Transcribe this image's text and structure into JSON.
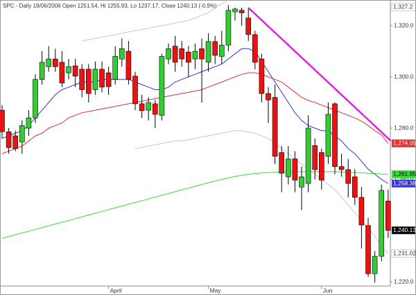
{
  "chart_data": {
    "type": "candlestick",
    "title": "SPC - Daily 19/06/2006 Open 1251.54, Hi 1255.93, Lo 1237.17, Close 1240.13 (-0.9%)",
    "categories": [
      null,
      null,
      null,
      null,
      null,
      null,
      null,
      null,
      null,
      null,
      null,
      null,
      null,
      null,
      null,
      null,
      "April",
      null,
      null,
      null,
      null,
      null,
      null,
      null,
      null,
      null,
      null,
      null,
      null,
      null,
      null,
      "May",
      null,
      null,
      null,
      null,
      null,
      null,
      null,
      null,
      null,
      null,
      null,
      null,
      null,
      null,
      null,
      null,
      "Jun",
      null,
      null,
      null,
      null,
      null,
      null,
      null,
      null,
      null,
      null
    ],
    "open": [
      1287,
      1278.6,
      1277,
      1274.6,
      1280,
      1284,
      1299,
      1304,
      1307,
      1305.7,
      1301.6,
      1304.3,
      1303,
      1303,
      1295,
      1303,
      1301.6,
      1299,
      1307,
      1310,
      1300.3,
      1289.5,
      1287,
      1289.5,
      1285,
      1307,
      1312,
      1311,
      1309.7,
      1307,
      1311,
      1305.7,
      1313.8,
      1308,
      1312.4,
      1325.4,
      1326,
      1323,
      1316.5,
      1307,
      1293.5,
      1292,
      1270.5,
      1261,
      1268,
      1257,
      1258.4,
      1273.2,
      1270.5,
      1269,
      1289.5,
      1265,
      1263.8,
      1261,
      1253,
      1242,
      1223.2,
      1230,
      1251.54
    ],
    "high": [
      1289,
      1280,
      1279,
      1283,
      1287,
      1301,
      1310,
      1312,
      1311,
      1310,
      1307,
      1307,
      1305,
      1305,
      1306,
      1306,
      1304,
      1312,
      1315,
      1314,
      1302,
      1293,
      1292,
      1291,
      1309,
      1313,
      1316,
      1314,
      1312,
      1313,
      1315,
      1317,
      1316,
      1318,
      1328,
      1327,
      1327,
      1327,
      1318,
      1309,
      1296,
      1297,
      1273,
      1273,
      1271,
      1265,
      1285,
      1276,
      1272,
      1290,
      1290,
      1270,
      1268,
      1264,
      1257,
      1245,
      1232,
      1258,
      1255.93
    ],
    "low": [
      1276,
      1270,
      1271,
      1270,
      1277,
      1282,
      1297,
      1302,
      1302,
      1296,
      1299,
      1296,
      1292,
      1290,
      1293,
      1294,
      1293,
      1297,
      1304,
      1297,
      1287,
      1284,
      1283,
      1280,
      1283,
      1305,
      1302,
      1304,
      1300,
      1303,
      1290,
      1302,
      1305,
      1305,
      1310,
      1322,
      1320,
      1314,
      1303,
      1290,
      1282,
      1266,
      1255,
      1258,
      1255,
      1248,
      1255,
      1260,
      1256,
      1266,
      1262,
      1261,
      1253,
      1250,
      1233,
      1222,
      1219.7,
      1228,
      1237.17
    ],
    "close": [
      1278.6,
      1272.4,
      1272,
      1281,
      1284,
      1299,
      1305.7,
      1307,
      1304,
      1297.6,
      1304,
      1300.3,
      1295,
      1293.5,
      1303,
      1296,
      1296.2,
      1308,
      1311,
      1299,
      1289.5,
      1286.8,
      1290,
      1285.4,
      1308,
      1311,
      1305.7,
      1307,
      1305.7,
      1310,
      1307,
      1313.8,
      1308.4,
      1312.4,
      1326,
      1326.5,
      1325,
      1316.5,
      1305.7,
      1293.5,
      1291,
      1269,
      1262.4,
      1268,
      1259.7,
      1261,
      1280,
      1263.8,
      1259.7,
      1285.4,
      1265,
      1263.8,
      1258.4,
      1253,
      1242.2,
      1223.2,
      1230,
      1255.7,
      1240.13
    ],
    "up_color": "#33cc33",
    "down_color": "#ee1111",
    "series": [
      {
        "color": "#3333dd",
        "values": [
          1276,
          1277,
          1278,
          1279,
          1281,
          1284,
          1287,
          1290,
          1293,
          1295,
          1296,
          1297,
          1298,
          1298,
          1298,
          1299,
          1299,
          1299,
          1299,
          1299,
          1298,
          1297,
          1296,
          1295,
          1295,
          1296,
          1298,
          1299,
          1300,
          1301,
          1302,
          1303,
          1304,
          1305,
          1307,
          1309,
          1311,
          1311,
          1310,
          1306,
          1302,
          1298,
          1294,
          1290,
          1286,
          1283,
          1281,
          1280,
          1279,
          1279,
          1277,
          1275,
          1272,
          1270,
          1267,
          1264,
          1262,
          1260,
          1258.38
        ]
      },
      {
        "color": "#e03030",
        "values": [
          1270,
          1271,
          1272,
          1273,
          1275,
          1277,
          1278,
          1280,
          1281,
          1282,
          1284,
          1285,
          1286,
          1286.5,
          1287,
          1287.5,
          1288,
          1288.5,
          1289,
          1289.5,
          1290,
          1290.5,
          1291,
          1291.5,
          1292,
          1292.5,
          1293,
          1293.5,
          1294,
          1294.5,
          1295,
          1296,
          1297,
          1298,
          1299,
          1300,
          1301,
          1301.6,
          1301.6,
          1301,
          1300,
          1299,
          1298,
          1296,
          1294,
          1292,
          1290.8,
          1290,
          1289,
          1288,
          1287,
          1286,
          1285,
          1284,
          1282.7,
          1281,
          1279,
          1277.3,
          1274.05
        ]
      },
      {
        "color": "#33dd33",
        "values": [
          1237,
          1237.7,
          1238.4,
          1239.1,
          1239.8,
          1240.5,
          1241.2,
          1241.9,
          1242.6,
          1243.3,
          1244,
          1244.7,
          1245.4,
          1246.1,
          1246.8,
          1247.5,
          1248.2,
          1248.9,
          1249.6,
          1250.3,
          1251,
          1251.7,
          1252.4,
          1253.1,
          1253.8,
          1254.5,
          1255.2,
          1255.9,
          1256.6,
          1257.3,
          1258,
          1258.7,
          1259.4,
          1260,
          1260.6,
          1261.1,
          1261.6,
          1262,
          1262.3,
          1262.5,
          1262.7,
          1262.8,
          1262.9,
          1263,
          1263,
          1263,
          1263,
          1263,
          1263,
          1263,
          1263,
          1262.9,
          1262.8,
          1262.7,
          1262.6,
          1262.4,
          1262.3,
          1262.1,
          1261.95
        ]
      },
      {
        "color": "#c8c8c8",
        "values": [
          null,
          null,
          null,
          null,
          null,
          null,
          null,
          null,
          null,
          null,
          null,
          null,
          1314,
          1314.5,
          1315,
          1315.5,
          1316,
          1316.5,
          1317,
          1317.5,
          1318,
          1318.5,
          1319,
          1319.5,
          1320,
          1320.5,
          1321,
          1321.5,
          1322,
          1323,
          1324,
          1325,
          1327,
          1328.5,
          1330,
          null,
          null,
          null,
          null,
          null,
          null,
          null,
          null,
          null,
          null,
          null,
          null,
          null,
          null,
          null,
          null,
          null,
          null,
          null,
          null,
          null,
          null,
          null,
          null
        ]
      },
      {
        "color": "#c8c8c8",
        "values": [
          null,
          null,
          null,
          null,
          null,
          null,
          null,
          null,
          null,
          null,
          null,
          null,
          null,
          null,
          null,
          null,
          null,
          null,
          null,
          null,
          1272,
          1272.5,
          1273,
          1273.5,
          1274,
          1274.5,
          1275,
          1275,
          1275.5,
          1276,
          1276.5,
          1277,
          1277.5,
          1278,
          1278.5,
          1279,
          1279,
          1278.5,
          1278,
          1277,
          1276,
          1274,
          1272,
          1270,
          1268,
          1266,
          1264,
          1262,
          1260,
          1258,
          1256,
          1253,
          1250,
          1247,
          1244,
          1241,
          1238,
          1234,
          1231.02
        ]
      }
    ],
    "trendline": {
      "color": "#e020e0",
      "start": [
        37,
        1327
      ],
      "end": [
        58,
        1275
      ]
    },
    "ylim": [
      1218.4,
      1330
    ],
    "yticks": [
      {
        "value": 1220,
        "label": "1,220.0"
      },
      {
        "value": 1260,
        "label": "1,260.0"
      },
      {
        "value": 1280,
        "label": "1,280.0"
      },
      {
        "value": 1300,
        "label": "1,300.0"
      },
      {
        "value": 1320,
        "label": "1,320.0"
      }
    ],
    "price_labels": [
      {
        "value": 1327.2,
        "label": "1,327.2",
        "background": "#ffffff",
        "text_color": "#333333"
      },
      {
        "value": 1274.05,
        "label": "1,274.05",
        "background": "#e03030",
        "text_color": "#ffffff"
      },
      {
        "value": 1261.95,
        "label": "1,261.95",
        "background": "#33dd33",
        "text_color": "#000000"
      },
      {
        "value": 1258.38,
        "label": "1,258.38",
        "background": "#3333dd",
        "text_color": "#ffffff"
      },
      {
        "value": 1240.13,
        "label": "1,240.13",
        "background": "#000000",
        "text_color": "#ffffff"
      },
      {
        "value": 1231.02,
        "label": "1,231.02",
        "background": "#ffffff",
        "text_color": "#333333"
      }
    ]
  }
}
